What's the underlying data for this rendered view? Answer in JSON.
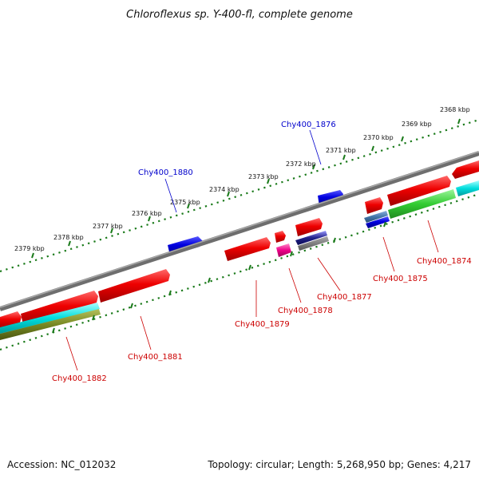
{
  "title": "Chloroflexus sp. Y-400-fl, complete genome",
  "footer": {
    "accession": "Accession: NC_012032",
    "summary": "Topology: circular; Length: 5,268,950 bp; Genes: 4,217"
  },
  "scale_labels": [
    "2368 kbp",
    "2369 kbp",
    "2370 kbp",
    "2371 kbp",
    "2372 kbp",
    "2373 kbp",
    "2374 kbp",
    "2375 kbp",
    "2376 kbp",
    "2377 kbp",
    "2378 kbp",
    "2379 kbp"
  ],
  "gene_labels": {
    "top": [
      "Chy400_1876",
      "Chy400_1880"
    ],
    "bottom": [
      "Chy400_1874",
      "Chy400_1875",
      "Chy400_1877",
      "Chy400_1878",
      "Chy400_1879",
      "Chy400_1881",
      "Chy400_1882"
    ]
  },
  "colors": {
    "backbone": "#808080",
    "forward_feature": "#0000e0",
    "cds": "#ee0000",
    "cds_label": "#cc0000",
    "top_label": "#0000cc",
    "tick": "#1a7a1a",
    "magenta_feature": "#ee0088",
    "green_feature": "#33cc33",
    "cyan_feature": "#00dddd",
    "olive_feature": "#778822"
  }
}
